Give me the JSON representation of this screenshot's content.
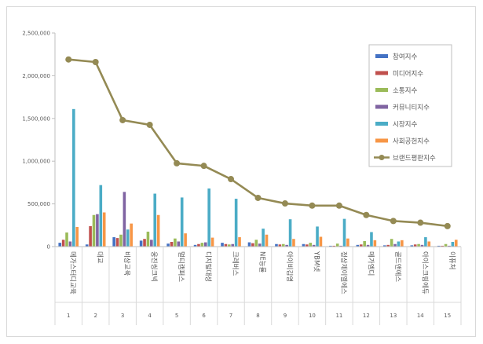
{
  "chart_data": {
    "type": "bar",
    "categories": [
      "메가스터디교육",
      "대교",
      "비상교육",
      "웅진씽크빅",
      "멀티캠퍼스",
      "디지털대성",
      "크레버스",
      "NE능률",
      "아이비김영",
      "YBM넷",
      "정상제이엘에스",
      "메가엠디",
      "골드앤에스",
      "아이스크림에듀",
      "이퓨처"
    ],
    "ranks": [
      "1",
      "2",
      "3",
      "4",
      "5",
      "6",
      "7",
      "8",
      "9",
      "10",
      "11",
      "12",
      "13",
      "14",
      "15"
    ],
    "y_ticks": [
      "0",
      "500,000",
      "1,000,000",
      "1,500,000",
      "2,000,000",
      "2,500,000"
    ],
    "ylim": [
      0,
      2500000
    ],
    "legend_position": "right",
    "grid": false,
    "series": [
      {
        "name": "참여지수",
        "color": "#4472c4",
        "kind": "bar",
        "values": [
          45000,
          25000,
          110000,
          70000,
          35000,
          20000,
          45000,
          50000,
          30000,
          30000,
          10000,
          20000,
          15000,
          15000,
          10000
        ]
      },
      {
        "name": "미디어지수",
        "color": "#c0504d",
        "kind": "bar",
        "values": [
          80000,
          240000,
          100000,
          90000,
          55000,
          30000,
          30000,
          40000,
          25000,
          25000,
          10000,
          25000,
          20000,
          25000,
          10000
        ]
      },
      {
        "name": "소통지수",
        "color": "#9bbb59",
        "kind": "bar",
        "values": [
          165000,
          370000,
          140000,
          175000,
          95000,
          45000,
          25000,
          80000,
          30000,
          45000,
          35000,
          65000,
          90000,
          30000,
          30000
        ]
      },
      {
        "name": "커뮤니티지수",
        "color": "#8064a2",
        "kind": "bar",
        "values": [
          60000,
          380000,
          640000,
          80000,
          60000,
          50000,
          30000,
          35000,
          20000,
          20000,
          10000,
          20000,
          30000,
          20000,
          10000
        ]
      },
      {
        "name": "시장지수",
        "color": "#4bacc6",
        "kind": "bar",
        "values": [
          1610000,
          720000,
          200000,
          620000,
          575000,
          680000,
          560000,
          210000,
          320000,
          235000,
          325000,
          170000,
          60000,
          110000,
          55000
        ]
      },
      {
        "name": "사회공헌지수",
        "color": "#f79646",
        "kind": "bar",
        "values": [
          230000,
          400000,
          270000,
          370000,
          155000,
          105000,
          110000,
          140000,
          90000,
          115000,
          95000,
          75000,
          75000,
          60000,
          80000
        ]
      },
      {
        "name": "브랜드평판지수",
        "color": "#948a54",
        "kind": "line",
        "values": [
          2190000,
          2160000,
          1480000,
          1425000,
          975000,
          945000,
          790000,
          570000,
          505000,
          480000,
          480000,
          370000,
          300000,
          280000,
          240000
        ]
      }
    ]
  }
}
